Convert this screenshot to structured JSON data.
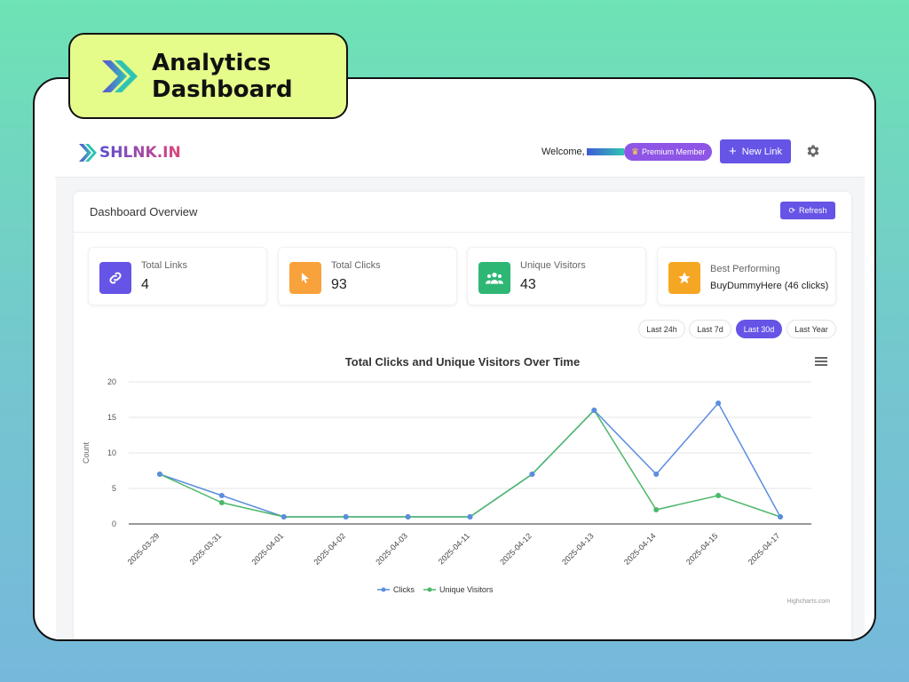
{
  "badge": {
    "title": "Analytics Dashboard"
  },
  "header": {
    "brand": "SHLNK.IN",
    "welcome": "Welcome,",
    "premium": "Premium Member",
    "new_link": "New Link"
  },
  "panel": {
    "title": "Dashboard Overview",
    "refresh": "Refresh"
  },
  "stats": [
    {
      "label": "Total Links",
      "value": "4",
      "icon": "link-icon",
      "color": "#6554e6"
    },
    {
      "label": "Total Clicks",
      "value": "93",
      "icon": "cursor-icon",
      "color": "#f8a23c"
    },
    {
      "label": "Unique Visitors",
      "value": "43",
      "icon": "users-icon",
      "color": "#2eb774"
    },
    {
      "label": "Best Performing",
      "value": "BuyDummyHere (46 clicks)",
      "icon": "star-icon",
      "color": "#f5a623"
    }
  ],
  "ranges": [
    {
      "label": "Last 24h",
      "active": false
    },
    {
      "label": "Last 7d",
      "active": false
    },
    {
      "label": "Last 30d",
      "active": true
    },
    {
      "label": "Last Year",
      "active": false
    }
  ],
  "chart_data": {
    "type": "line",
    "title": "Total Clicks and Unique Visitors Over Time",
    "xlabel": "",
    "ylabel": "Count",
    "categories": [
      "2025-03-29",
      "2025-03-31",
      "2025-04-01",
      "2025-04-02",
      "2025-04-03",
      "2025-04-11",
      "2025-04-12",
      "2025-04-13",
      "2025-04-14",
      "2025-04-15",
      "2025-04-17"
    ],
    "series": [
      {
        "name": "Clicks",
        "color": "#5b8de0",
        "values": [
          7,
          4,
          1,
          1,
          1,
          1,
          7,
          16,
          7,
          17,
          1
        ]
      },
      {
        "name": "Unique Visitors",
        "color": "#4cb86a",
        "values": [
          7,
          3,
          1,
          1,
          1,
          1,
          7,
          16,
          2,
          4,
          1
        ]
      }
    ],
    "ylim": [
      0,
      20
    ],
    "yticks": [
      0,
      5,
      10,
      15,
      20
    ],
    "grid": true,
    "legend": "bottom-center",
    "credit": "Highcharts.com"
  }
}
